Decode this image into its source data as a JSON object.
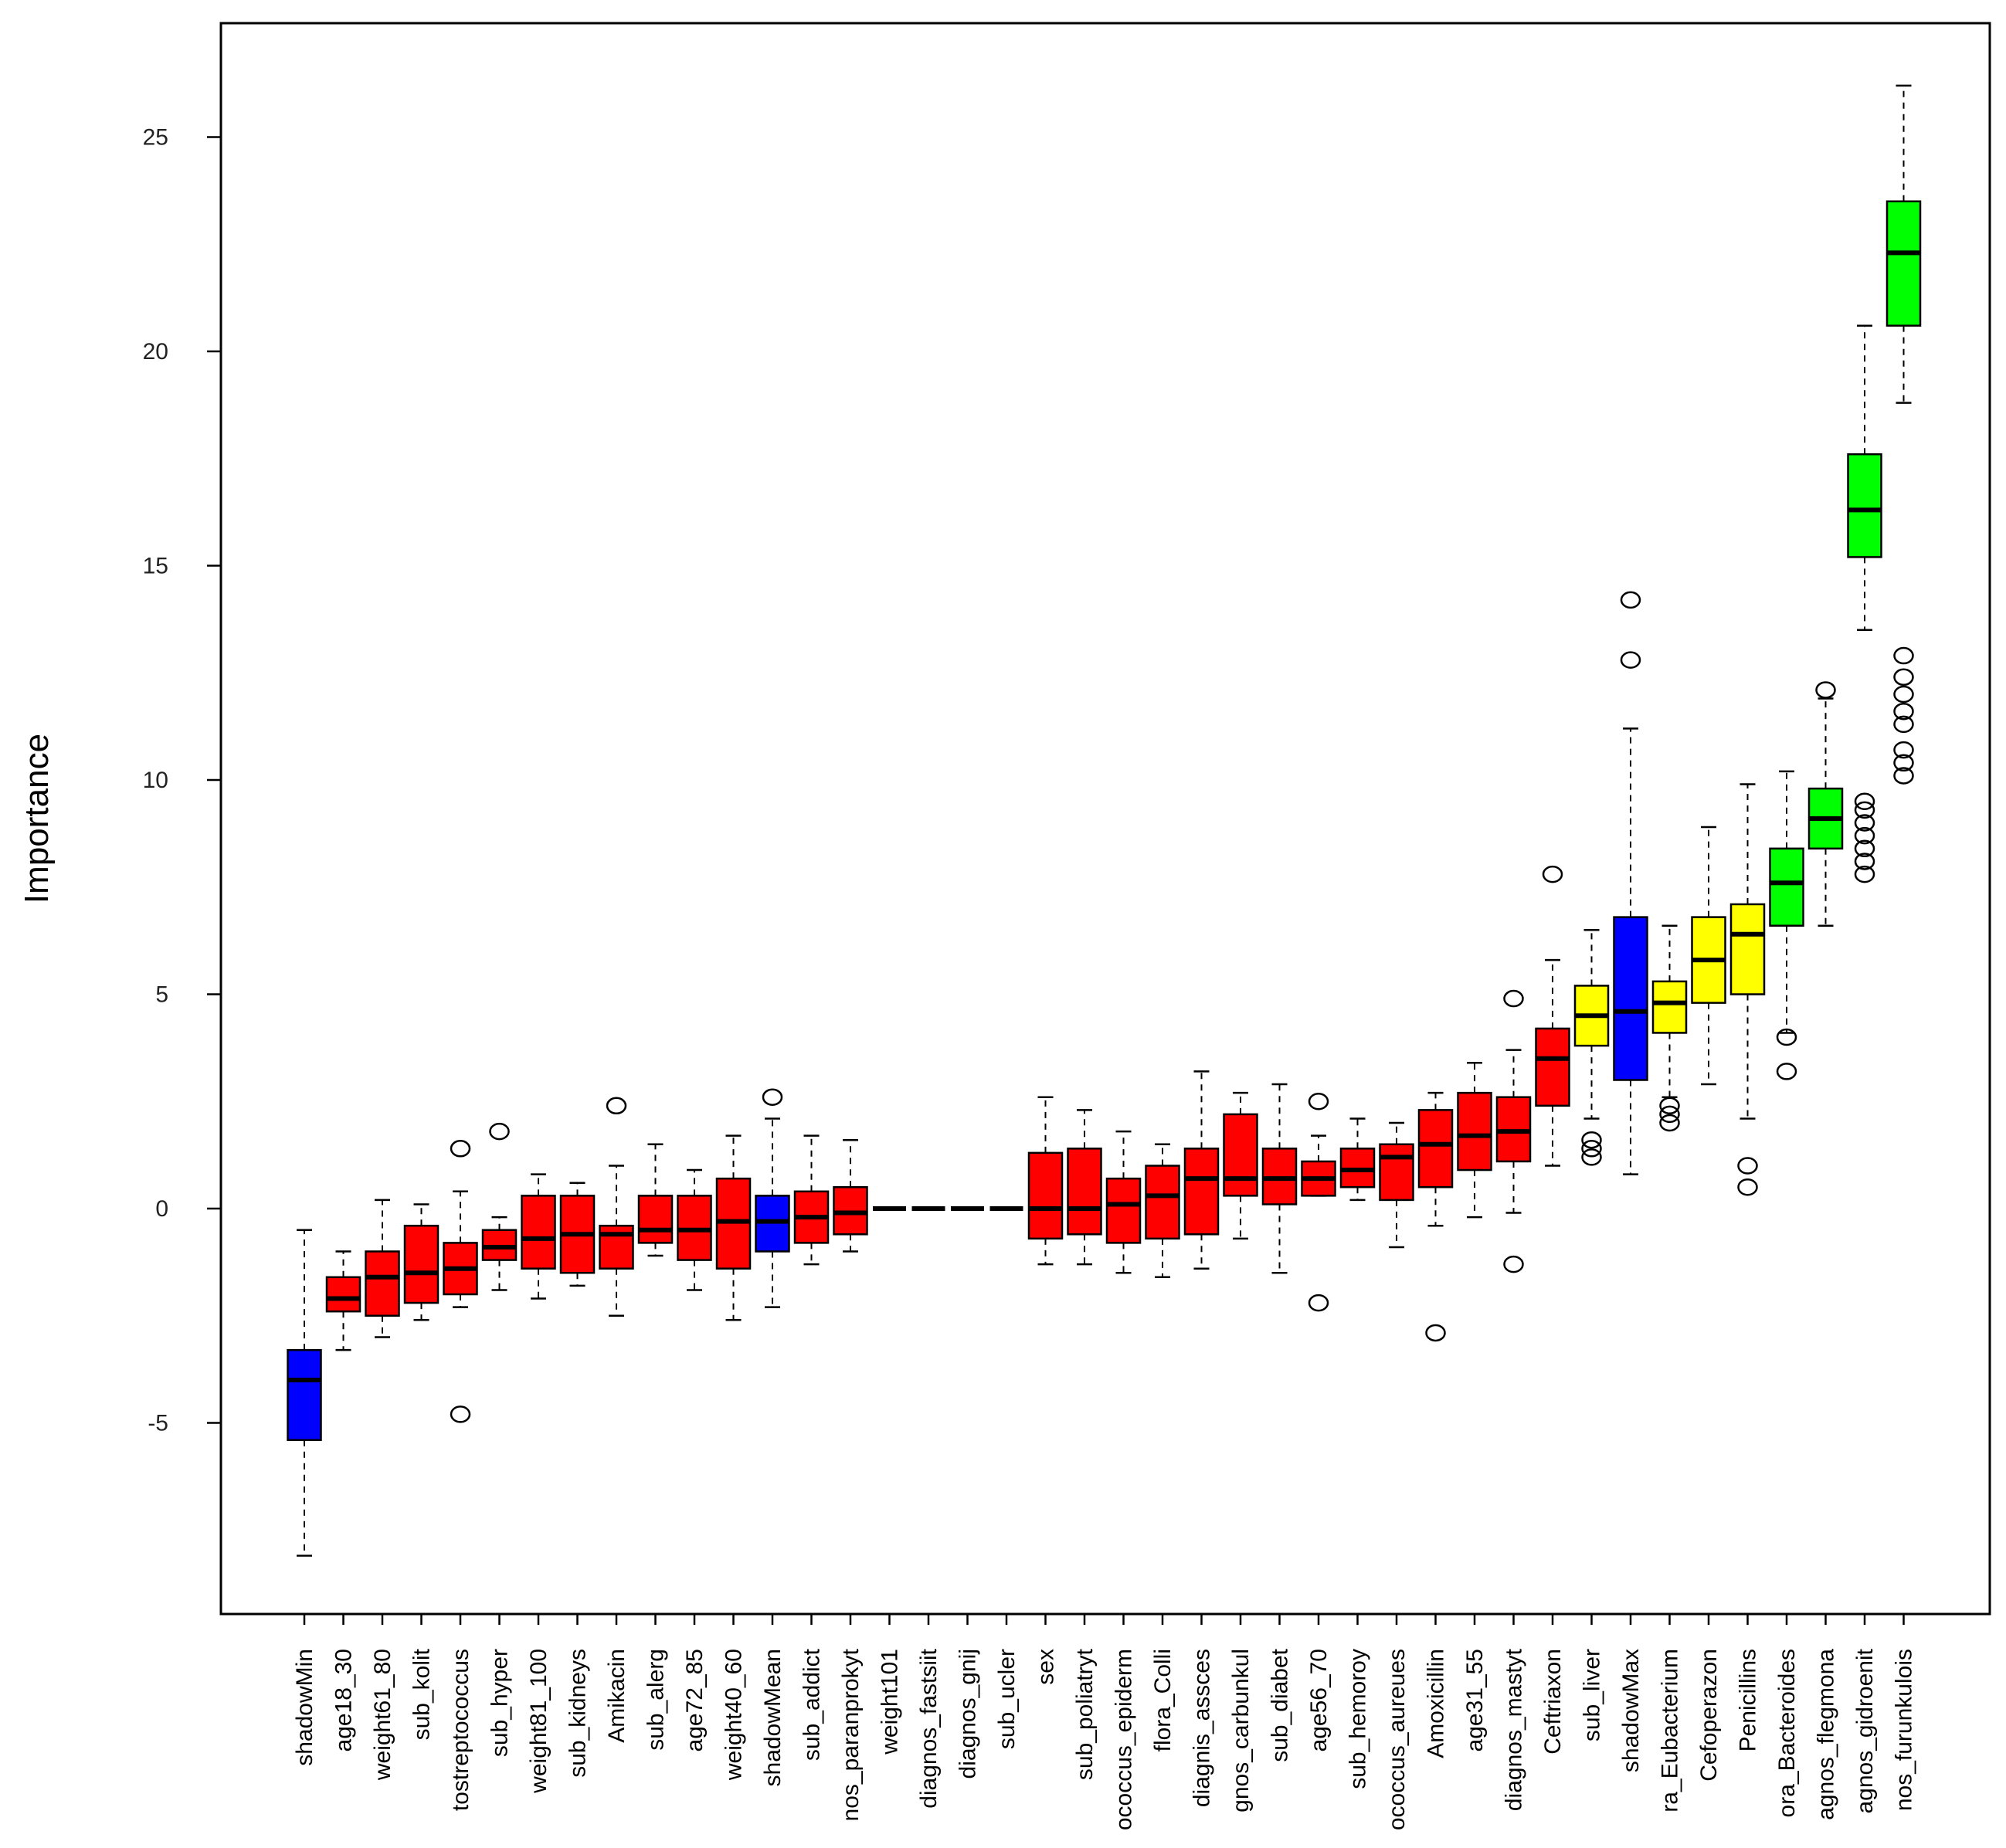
{
  "chart_data": {
    "type": "boxplot",
    "title": "",
    "xlabel": "",
    "ylabel": "Importance",
    "ylim": [
      -9,
      28
    ],
    "yticks": [
      -5,
      0,
      5,
      10,
      15,
      20,
      25
    ],
    "ytick_labels": [
      "-5",
      "0",
      "5",
      "10",
      "15",
      "20",
      "25"
    ],
    "colors": {
      "shadow": "#0000ff",
      "rejected": "#ff0000",
      "tentative": "#ffff00",
      "confirmed": "#00ff00"
    },
    "categories": [
      {
        "name": "shadowMin",
        "label": "shadowMin",
        "status": "shadow",
        "whisker_low": -8.1,
        "q1": -5.4,
        "median": -4.0,
        "q3": -3.3,
        "whisker_high": -0.5,
        "outliers": []
      },
      {
        "name": "age18_30",
        "label": "age18_30",
        "status": "rejected",
        "whisker_low": -3.3,
        "q1": -2.4,
        "median": -2.1,
        "q3": -1.6,
        "whisker_high": -1.0,
        "outliers": []
      },
      {
        "name": "weight61_80",
        "label": "weight61_80",
        "status": "rejected",
        "whisker_low": -3.0,
        "q1": -2.5,
        "median": -1.6,
        "q3": -1.0,
        "whisker_high": 0.2,
        "outliers": []
      },
      {
        "name": "sub_kolit",
        "label": "sub_kolit",
        "status": "rejected",
        "whisker_low": -2.6,
        "q1": -2.2,
        "median": -1.5,
        "q3": -0.4,
        "whisker_high": 0.1,
        "outliers": []
      },
      {
        "name": "Peptostreptococcus",
        "label": "tostreptococcus",
        "status": "rejected",
        "whisker_low": -2.3,
        "q1": -2.0,
        "median": -1.4,
        "q3": -0.8,
        "whisker_high": 0.4,
        "outliers": [
          1.4,
          -4.8
        ]
      },
      {
        "name": "sub_hyper",
        "label": "sub_hyper",
        "status": "rejected",
        "whisker_low": -1.9,
        "q1": -1.2,
        "median": -0.9,
        "q3": -0.5,
        "whisker_high": -0.2,
        "outliers": [
          1.8
        ]
      },
      {
        "name": "weight81_100",
        "label": "weight81_100",
        "status": "rejected",
        "whisker_low": -2.1,
        "q1": -1.4,
        "median": -0.7,
        "q3": 0.3,
        "whisker_high": 0.8,
        "outliers": []
      },
      {
        "name": "sub_kidneys",
        "label": "sub_kidneys",
        "status": "rejected",
        "whisker_low": -1.8,
        "q1": -1.5,
        "median": -0.6,
        "q3": 0.3,
        "whisker_high": 0.6,
        "outliers": []
      },
      {
        "name": "Amikacin",
        "label": "Amikacin",
        "status": "rejected",
        "whisker_low": -2.5,
        "q1": -1.4,
        "median": -0.6,
        "q3": -0.4,
        "whisker_high": 1.0,
        "outliers": [
          2.4
        ]
      },
      {
        "name": "sub_alerg",
        "label": "sub_alerg",
        "status": "rejected",
        "whisker_low": -1.1,
        "q1": -0.8,
        "median": -0.5,
        "q3": 0.3,
        "whisker_high": 1.5,
        "outliers": []
      },
      {
        "name": "age72_85",
        "label": "age72_85",
        "status": "rejected",
        "whisker_low": -1.9,
        "q1": -1.2,
        "median": -0.5,
        "q3": 0.3,
        "whisker_high": 0.9,
        "outliers": []
      },
      {
        "name": "weight40_60",
        "label": "weight40_60",
        "status": "rejected",
        "whisker_low": -2.6,
        "q1": -1.4,
        "median": -0.3,
        "q3": 0.7,
        "whisker_high": 1.7,
        "outliers": []
      },
      {
        "name": "shadowMean",
        "label": "shadowMean",
        "status": "shadow",
        "whisker_low": -2.3,
        "q1": -1.0,
        "median": -0.3,
        "q3": 0.3,
        "whisker_high": 2.1,
        "outliers": [
          2.6
        ]
      },
      {
        "name": "sub_addict",
        "label": "sub_addict",
        "status": "rejected",
        "whisker_low": -1.3,
        "q1": -0.8,
        "median": -0.2,
        "q3": 0.4,
        "whisker_high": 1.7,
        "outliers": []
      },
      {
        "name": "diagnos_paranprokyt",
        "label": "nos_paranprokyt",
        "status": "rejected",
        "whisker_low": -1.0,
        "q1": -0.6,
        "median": -0.1,
        "q3": 0.5,
        "whisker_high": 1.6,
        "outliers": []
      },
      {
        "name": "weight101",
        "label": "weight101",
        "status": "rejected",
        "whisker_low": 0,
        "q1": 0,
        "median": 0,
        "q3": 0,
        "whisker_high": 0,
        "outliers": []
      },
      {
        "name": "diagnos_fastsiit",
        "label": "diagnos_fastsiit",
        "status": "rejected",
        "whisker_low": 0,
        "q1": 0,
        "median": 0,
        "q3": 0,
        "whisker_high": 0,
        "outliers": []
      },
      {
        "name": "diagnos_gnij",
        "label": "diagnos_gnij",
        "status": "rejected",
        "whisker_low": 0,
        "q1": 0,
        "median": 0,
        "q3": 0,
        "whisker_high": 0,
        "outliers": []
      },
      {
        "name": "sub_ucler",
        "label": "sub_ucler",
        "status": "rejected",
        "whisker_low": 0,
        "q1": 0,
        "median": 0,
        "q3": 0,
        "whisker_high": 0,
        "outliers": []
      },
      {
        "name": "sex",
        "label": "sex",
        "status": "rejected",
        "whisker_low": -1.3,
        "q1": -0.7,
        "median": 0.0,
        "q3": 1.3,
        "whisker_high": 2.6,
        "outliers": []
      },
      {
        "name": "sub_poliatryt",
        "label": "sub_poliatryt",
        "status": "rejected",
        "whisker_low": -1.3,
        "q1": -0.6,
        "median": 0.0,
        "q3": 1.4,
        "whisker_high": 2.3,
        "outliers": []
      },
      {
        "name": "Staphylococcus_epiderm",
        "label": "ococcus_epiderm",
        "status": "rejected",
        "whisker_low": -1.5,
        "q1": -0.8,
        "median": 0.1,
        "q3": 0.7,
        "whisker_high": 1.8,
        "outliers": []
      },
      {
        "name": "flora_Colli",
        "label": "flora_Colli",
        "status": "rejected",
        "whisker_low": -1.6,
        "q1": -0.7,
        "median": 0.3,
        "q3": 1.0,
        "whisker_high": 1.5,
        "outliers": []
      },
      {
        "name": "diagnis_assces",
        "label": "diagnis_assces",
        "status": "rejected",
        "whisker_low": -1.4,
        "q1": -0.6,
        "median": 0.7,
        "q3": 1.4,
        "whisker_high": 3.2,
        "outliers": []
      },
      {
        "name": "diagnos_carbunkul",
        "label": "gnos_carbunkul",
        "status": "rejected",
        "whisker_low": -0.7,
        "q1": 0.3,
        "median": 0.7,
        "q3": 2.2,
        "whisker_high": 2.7,
        "outliers": []
      },
      {
        "name": "sub_diabet",
        "label": "sub_diabet",
        "status": "rejected",
        "whisker_low": -1.5,
        "q1": 0.1,
        "median": 0.7,
        "q3": 1.4,
        "whisker_high": 2.9,
        "outliers": []
      },
      {
        "name": "age56_70",
        "label": "age56_70",
        "status": "rejected",
        "whisker_low": 0.3,
        "q1": 0.3,
        "median": 0.7,
        "q3": 1.1,
        "whisker_high": 1.7,
        "outliers": [
          2.5,
          -2.2
        ]
      },
      {
        "name": "sub_hemoroy",
        "label": "sub_hemoroy",
        "status": "rejected",
        "whisker_low": 0.2,
        "q1": 0.5,
        "median": 0.9,
        "q3": 1.4,
        "whisker_high": 2.1,
        "outliers": []
      },
      {
        "name": "Staphylococcus_aureues",
        "label": "ococcus_aureues",
        "status": "rejected",
        "whisker_low": -0.9,
        "q1": 0.2,
        "median": 1.2,
        "q3": 1.5,
        "whisker_high": 2.0,
        "outliers": []
      },
      {
        "name": "Amoxicillin",
        "label": "Amoxicillin",
        "status": "rejected",
        "whisker_low": -0.4,
        "q1": 0.5,
        "median": 1.5,
        "q3": 2.3,
        "whisker_high": 2.7,
        "outliers": [
          -2.9
        ]
      },
      {
        "name": "age31_55",
        "label": "age31_55",
        "status": "rejected",
        "whisker_low": -0.2,
        "q1": 0.9,
        "median": 1.7,
        "q3": 2.7,
        "whisker_high": 3.4,
        "outliers": []
      },
      {
        "name": "diagnos_mastyt",
        "label": "diagnos_mastyt",
        "status": "rejected",
        "whisker_low": -0.1,
        "q1": 1.1,
        "median": 1.8,
        "q3": 2.6,
        "whisker_high": 3.7,
        "outliers": [
          4.9,
          -1.3
        ]
      },
      {
        "name": "Ceftriaxon",
        "label": "Ceftriaxon",
        "status": "rejected",
        "whisker_low": 1.0,
        "q1": 2.4,
        "median": 3.5,
        "q3": 4.2,
        "whisker_high": 5.8,
        "outliers": [
          7.8
        ]
      },
      {
        "name": "sub_liver",
        "label": "sub_liver",
        "status": "tentative",
        "whisker_low": 2.1,
        "q1": 3.8,
        "median": 4.5,
        "q3": 5.2,
        "whisker_high": 6.5,
        "outliers": [
          1.2,
          1.4,
          1.6
        ]
      },
      {
        "name": "shadowMax",
        "label": "shadowMax",
        "status": "shadow",
        "whisker_low": 0.8,
        "q1": 3.0,
        "median": 4.6,
        "q3": 6.8,
        "whisker_high": 11.2,
        "outliers": [
          12.8,
          14.2
        ]
      },
      {
        "name": "flora_Eubacterium",
        "label": "ra_Eubacterium",
        "status": "tentative",
        "whisker_low": 2.6,
        "q1": 4.1,
        "median": 4.8,
        "q3": 5.3,
        "whisker_high": 6.6,
        "outliers": [
          2.0,
          2.2,
          2.4
        ]
      },
      {
        "name": "Cefoperazon",
        "label": "Cefoperazon",
        "status": "tentative",
        "whisker_low": 2.9,
        "q1": 4.8,
        "median": 5.8,
        "q3": 6.8,
        "whisker_high": 8.9,
        "outliers": []
      },
      {
        "name": "Penicillins",
        "label": "Penicillins",
        "status": "tentative",
        "whisker_low": 2.1,
        "q1": 5.0,
        "median": 6.4,
        "q3": 7.1,
        "whisker_high": 9.9,
        "outliers": [
          0.5,
          1.0
        ]
      },
      {
        "name": "flora_Bacteroides",
        "label": "ora_Bacteroides",
        "status": "confirmed",
        "whisker_low": 4.1,
        "q1": 6.6,
        "median": 7.6,
        "q3": 8.4,
        "whisker_high": 10.2,
        "outliers": [
          4.0,
          3.2
        ]
      },
      {
        "name": "diagnos_flegmona",
        "label": "agnos_flegmona",
        "status": "confirmed",
        "whisker_low": 6.6,
        "q1": 8.4,
        "median": 9.1,
        "q3": 9.8,
        "whisker_high": 11.9,
        "outliers": [
          12.1
        ]
      },
      {
        "name": "diagnos_gidroenit",
        "label": "agnos_gidroenit",
        "status": "confirmed",
        "whisker_low": 13.5,
        "q1": 15.2,
        "median": 16.3,
        "q3": 17.6,
        "whisker_high": 20.6,
        "outliers": [
          7.8,
          8.1,
          8.4,
          8.7,
          9.0,
          9.3,
          9.5
        ]
      },
      {
        "name": "diagnos_furunkulois",
        "label": "nos_furunkulois",
        "status": "confirmed",
        "whisker_low": 18.8,
        "q1": 20.6,
        "median": 22.3,
        "q3": 23.5,
        "whisker_high": 26.2,
        "outliers": [
          10.1,
          10.4,
          10.7,
          11.3,
          11.6,
          12.0,
          12.4,
          12.9
        ]
      }
    ]
  }
}
